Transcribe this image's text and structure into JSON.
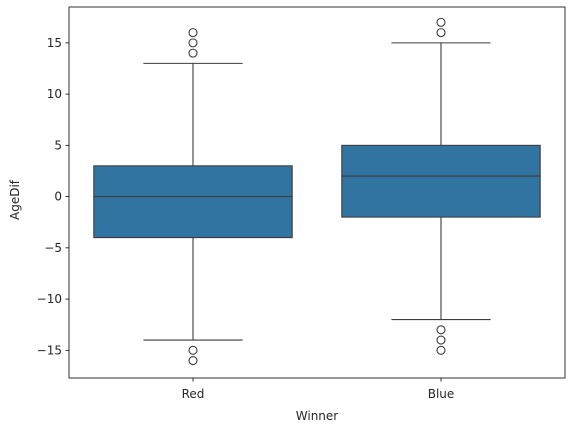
{
  "chart_data": {
    "type": "box",
    "title": "",
    "xlabel": "Winner",
    "ylabel": "AgeDif",
    "ylim": [
      -17.7,
      18.5
    ],
    "yticks": [
      -15,
      -10,
      -5,
      0,
      5,
      10,
      15
    ],
    "ytick_labels": [
      "−15",
      "−10",
      "−5",
      "0",
      "5",
      "10",
      "15"
    ],
    "categories": [
      "Red",
      "Blue"
    ],
    "box_color": "#3274a1",
    "line_color": "#3d3d3d",
    "boxes": [
      {
        "category": "Red",
        "whisker_low": -14,
        "q1": -4,
        "median": 0,
        "q3": 3,
        "whisker_high": 13,
        "outliers": [
          14,
          15,
          16,
          -15,
          -16
        ]
      },
      {
        "category": "Blue",
        "whisker_low": -12,
        "q1": -2,
        "median": 2,
        "q3": 5,
        "whisker_high": 15,
        "outliers": [
          16,
          17,
          -13,
          -14,
          -15
        ]
      }
    ]
  }
}
